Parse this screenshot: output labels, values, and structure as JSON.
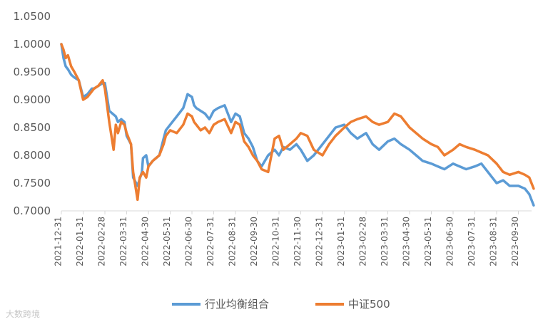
{
  "chart_data": {
    "type": "line",
    "title": "",
    "xlabel": "",
    "ylabel": "",
    "ylim": [
      0.7,
      1.05
    ],
    "yticks": [
      "1.0500",
      "1.0000",
      "0.9500",
      "0.9000",
      "0.8500",
      "0.8000",
      "0.7500",
      "0.7000"
    ],
    "xticks": [
      "2021-12-31",
      "2022-01-31",
      "2022-02-28",
      "2022-03-31",
      "2022-04-30",
      "2022-05-31",
      "2022-06-30",
      "2022-07-31",
      "2022-08-31",
      "2022-09-30",
      "2022-10-31",
      "2022-11-30",
      "2022-12-31",
      "2023-01-31",
      "2023-02-28",
      "2023-03-31",
      "2023-04-30",
      "2023-05-31",
      "2023-06-30",
      "2023-07-31",
      "2023-08-31",
      "2023-09-30"
    ],
    "grid": false,
    "legend": "bottom",
    "series": [
      {
        "name": "行业均衡组合",
        "color": "#5B9BD5",
        "x": [
          0,
          0.1,
          0.2,
          0.3,
          0.45,
          0.6,
          0.8,
          1.0,
          1.2,
          1.4,
          1.5,
          1.7,
          1.9,
          2.0,
          2.2,
          2.5,
          2.6,
          2.75,
          2.9,
          3.0,
          3.2,
          3.3,
          3.5,
          3.7,
          3.75,
          3.9,
          4.0,
          4.2,
          4.5,
          4.7,
          4.8,
          5.0,
          5.3,
          5.6,
          5.8,
          6.0,
          6.1,
          6.2,
          6.4,
          6.6,
          6.8,
          7.0,
          7.2,
          7.5,
          7.8,
          8.0,
          8.2,
          8.4,
          8.6,
          8.8,
          9.0,
          9.2,
          9.5,
          9.8,
          10.0,
          10.2,
          10.5,
          10.8,
          11.0,
          11.3,
          11.6,
          12.0,
          12.3,
          12.6,
          13.0,
          13.3,
          13.6,
          14.0,
          14.3,
          14.6,
          15.0,
          15.3,
          15.6,
          16.0,
          16.3,
          16.6,
          17.0,
          17.3,
          17.6,
          18.0,
          18.3,
          18.6,
          19.0,
          19.3,
          19.6,
          20.0,
          20.3,
          20.6,
          21.0,
          21.3,
          21.5,
          21.7
        ],
        "values": [
          1.0,
          0.975,
          0.96,
          0.955,
          0.945,
          0.94,
          0.935,
          0.905,
          0.91,
          0.92,
          0.92,
          0.925,
          0.93,
          0.93,
          0.88,
          0.87,
          0.86,
          0.865,
          0.86,
          0.835,
          0.82,
          0.76,
          0.745,
          0.77,
          0.795,
          0.8,
          0.78,
          0.79,
          0.8,
          0.83,
          0.845,
          0.855,
          0.87,
          0.885,
          0.91,
          0.905,
          0.89,
          0.885,
          0.88,
          0.875,
          0.865,
          0.88,
          0.885,
          0.89,
          0.86,
          0.875,
          0.87,
          0.84,
          0.83,
          0.815,
          0.79,
          0.78,
          0.8,
          0.81,
          0.8,
          0.815,
          0.81,
          0.82,
          0.81,
          0.79,
          0.8,
          0.82,
          0.835,
          0.85,
          0.855,
          0.84,
          0.83,
          0.84,
          0.82,
          0.81,
          0.825,
          0.83,
          0.82,
          0.81,
          0.8,
          0.79,
          0.785,
          0.78,
          0.775,
          0.785,
          0.78,
          0.775,
          0.78,
          0.785,
          0.77,
          0.75,
          0.755,
          0.745,
          0.745,
          0.74,
          0.73,
          0.71
        ]
      },
      {
        "name": "中证500",
        "color": "#ED7D31",
        "x": [
          0,
          0.1,
          0.2,
          0.3,
          0.45,
          0.6,
          0.8,
          1.0,
          1.2,
          1.4,
          1.5,
          1.7,
          1.9,
          2.0,
          2.2,
          2.4,
          2.5,
          2.6,
          2.75,
          2.9,
          3.0,
          3.2,
          3.3,
          3.5,
          3.6,
          3.75,
          3.9,
          4.0,
          4.2,
          4.5,
          4.7,
          4.8,
          5.0,
          5.3,
          5.6,
          5.8,
          6.0,
          6.1,
          6.2,
          6.4,
          6.6,
          6.8,
          7.0,
          7.2,
          7.5,
          7.8,
          8.0,
          8.2,
          8.4,
          8.6,
          8.8,
          9.0,
          9.2,
          9.5,
          9.8,
          10.0,
          10.2,
          10.5,
          10.8,
          11.0,
          11.3,
          11.6,
          12.0,
          12.3,
          12.6,
          13.0,
          13.3,
          13.6,
          14.0,
          14.3,
          14.6,
          15.0,
          15.3,
          15.6,
          16.0,
          16.3,
          16.6,
          17.0,
          17.3,
          17.6,
          18.0,
          18.3,
          18.6,
          19.0,
          19.3,
          19.6,
          20.0,
          20.3,
          20.6,
          21.0,
          21.3,
          21.5,
          21.7
        ],
        "values": [
          1.0,
          0.99,
          0.975,
          0.98,
          0.96,
          0.95,
          0.935,
          0.9,
          0.905,
          0.915,
          0.92,
          0.925,
          0.935,
          0.92,
          0.86,
          0.81,
          0.855,
          0.84,
          0.86,
          0.855,
          0.84,
          0.82,
          0.77,
          0.72,
          0.76,
          0.77,
          0.76,
          0.78,
          0.79,
          0.8,
          0.82,
          0.835,
          0.845,
          0.84,
          0.855,
          0.875,
          0.87,
          0.86,
          0.855,
          0.845,
          0.85,
          0.84,
          0.855,
          0.86,
          0.865,
          0.84,
          0.86,
          0.855,
          0.825,
          0.815,
          0.8,
          0.79,
          0.775,
          0.77,
          0.83,
          0.835,
          0.81,
          0.82,
          0.83,
          0.84,
          0.835,
          0.81,
          0.8,
          0.82,
          0.835,
          0.85,
          0.86,
          0.865,
          0.87,
          0.86,
          0.855,
          0.86,
          0.875,
          0.87,
          0.85,
          0.84,
          0.83,
          0.82,
          0.815,
          0.8,
          0.81,
          0.82,
          0.815,
          0.81,
          0.805,
          0.8,
          0.785,
          0.77,
          0.765,
          0.77,
          0.765,
          0.76,
          0.74
        ]
      }
    ]
  },
  "watermark": "大数跨境"
}
